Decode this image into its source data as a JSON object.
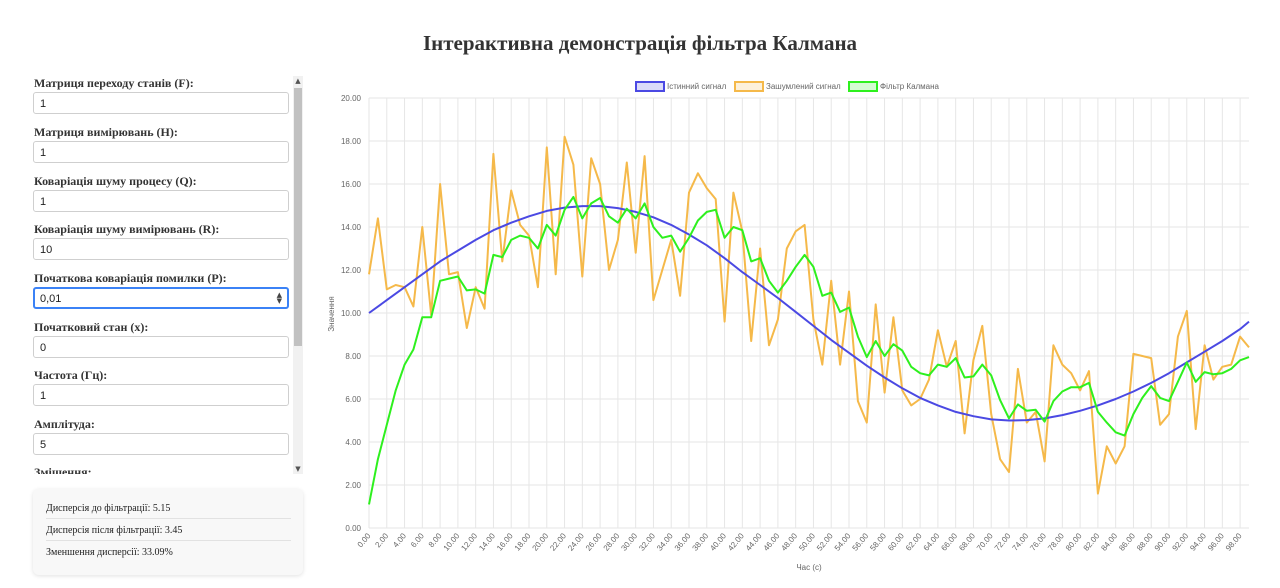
{
  "page": {
    "title": "Інтерактивна демонстрація фільтра Калмана"
  },
  "parameters": [
    {
      "label": "Матриця переходу станів (F):",
      "value": "1"
    },
    {
      "label": "Матриця вимірювань (H):",
      "value": "1"
    },
    {
      "label": "Коваріація шуму процесу (Q):",
      "value": "1"
    },
    {
      "label": "Коваріація шуму вимірювань (R):",
      "value": "10"
    },
    {
      "label": "Початкова коваріація помилки (P):",
      "value": "0,01"
    },
    {
      "label": "Початковий стан (x):",
      "value": "0"
    },
    {
      "label": "Частота (Гц):",
      "value": "1"
    },
    {
      "label": "Амплітуда:",
      "value": "5"
    },
    {
      "label": "Зміщення:",
      "value": ""
    }
  ],
  "stats": {
    "before": "Дисперсія до фільтрації: 5.15",
    "after": "Дисперсія після фільтрації: 3.45",
    "reduction": "Зменшення дисперсії: 33.09%"
  },
  "icons": {
    "spinner": "spinner-arrows-icon",
    "scroll_up": "scroll-up-arrow-icon",
    "scroll_down": "scroll-down-arrow-icon"
  },
  "colors": {
    "true_signal": "#4b49e3",
    "noisy_signal": "#f5b94a",
    "kalman": "#2ef01e",
    "focus": "#3b82f6"
  },
  "chart_data": {
    "type": "line",
    "xlabel": "Час (с)",
    "ylabel": "Значення",
    "ylim": [
      0,
      20
    ],
    "y_ticks": [
      "0.00",
      "2.00",
      "4.00",
      "6.00",
      "8.00",
      "10.00",
      "12.00",
      "14.00",
      "16.00",
      "18.00",
      "20.00"
    ],
    "x_ticks": [
      "0.00",
      "2.00",
      "4.00",
      "6.00",
      "8.00",
      "10.00",
      "12.00",
      "14.00",
      "16.00",
      "18.00",
      "20.00",
      "22.00",
      "24.00",
      "26.00",
      "28.00",
      "30.00",
      "32.00",
      "34.00",
      "36.00",
      "38.00",
      "40.00",
      "42.00",
      "44.00",
      "46.00",
      "48.00",
      "50.00",
      "52.00",
      "54.00",
      "56.00",
      "58.00",
      "60.00",
      "62.00",
      "64.00",
      "66.00",
      "68.00",
      "70.00",
      "72.00",
      "74.00",
      "76.00",
      "78.00",
      "80.00",
      "82.00",
      "84.00",
      "86.00",
      "88.00",
      "90.00",
      "92.00",
      "94.00",
      "96.00",
      "98.00"
    ],
    "grid": true,
    "legend_position": "top",
    "series": [
      {
        "name": "Істинний сигнал",
        "color": "#4b49e3",
        "x": [
          0,
          2,
          4,
          6,
          8,
          10,
          12,
          14,
          16,
          18,
          20,
          22,
          24,
          26,
          28,
          30,
          32,
          34,
          36,
          38,
          40,
          42,
          44,
          46,
          48,
          50,
          52,
          54,
          56,
          58,
          60,
          62,
          64,
          66,
          68,
          70,
          72,
          74,
          76,
          78,
          80,
          82,
          84,
          86,
          88,
          90,
          92,
          94,
          96,
          98,
          99
        ],
        "values": [
          10,
          10.6,
          11.2,
          11.8,
          12.4,
          12.9,
          13.4,
          13.85,
          14.2,
          14.5,
          14.75,
          14.9,
          14.97,
          14.97,
          14.88,
          14.7,
          14.45,
          14.1,
          13.65,
          13.15,
          12.55,
          11.9,
          11.3,
          10.7,
          10.05,
          9.4,
          8.75,
          8.15,
          7.55,
          7.0,
          6.5,
          6.05,
          5.7,
          5.4,
          5.2,
          5.05,
          5.0,
          5.02,
          5.1,
          5.25,
          5.45,
          5.7,
          6.0,
          6.35,
          6.75,
          7.2,
          7.7,
          8.2,
          8.7,
          9.25,
          9.6
        ]
      },
      {
        "name": "Зашумлений сигнал",
        "color": "#f5b94a",
        "x": [
          0,
          1,
          2,
          3,
          4,
          5,
          6,
          7,
          8,
          9,
          10,
          11,
          12,
          13,
          14,
          15,
          16,
          17,
          18,
          19,
          20,
          21,
          22,
          23,
          24,
          25,
          26,
          27,
          28,
          29,
          30,
          31,
          32,
          33,
          34,
          35,
          36,
          37,
          38,
          39,
          40,
          41,
          42,
          43,
          44,
          45,
          46,
          47,
          48,
          49,
          50,
          51,
          52,
          53,
          54,
          55,
          56,
          57,
          58,
          59,
          60,
          61,
          62,
          63,
          64,
          65,
          66,
          67,
          68,
          69,
          70,
          71,
          72,
          73,
          74,
          75,
          76,
          77,
          78,
          79,
          80,
          81,
          82,
          83,
          84,
          85,
          86,
          87,
          88,
          89,
          90,
          91,
          92,
          93,
          94,
          95,
          96,
          97,
          98,
          99
        ],
        "values": [
          11.8,
          14.4,
          11.1,
          11.3,
          11.2,
          10.3,
          14.0,
          9.9,
          16.0,
          11.8,
          11.9,
          9.3,
          11.2,
          10.2,
          17.4,
          12.4,
          15.7,
          14.1,
          13.6,
          11.2,
          17.7,
          11.8,
          18.2,
          16.9,
          11.7,
          17.2,
          16.0,
          12.0,
          13.4,
          17.0,
          12.8,
          17.3,
          10.6,
          12.0,
          13.4,
          10.8,
          15.6,
          16.5,
          15.8,
          15.3,
          9.6,
          15.6,
          13.8,
          8.7,
          13.0,
          8.5,
          9.7,
          13.0,
          13.8,
          14.1,
          9.7,
          7.6,
          11.5,
          7.6,
          11.0,
          5.9,
          4.9,
          10.4,
          6.3,
          9.8,
          6.4,
          5.7,
          6.0,
          6.9,
          9.2,
          7.5,
          8.7,
          4.4,
          7.8,
          9.4,
          5.3,
          3.2,
          2.6,
          7.4,
          4.9,
          5.4,
          3.1,
          8.5,
          7.6,
          7.2,
          6.4,
          7.3,
          1.6,
          3.8,
          3.0,
          3.8,
          8.1,
          8.0,
          7.9,
          4.8,
          5.3,
          8.9,
          10.1,
          4.6,
          8.5,
          6.9,
          7.5,
          7.6,
          8.9,
          8.4
        ]
      },
      {
        "name": "Фільтр Калмана",
        "color": "#2ef01e",
        "x": [
          0,
          1,
          2,
          3,
          4,
          5,
          6,
          7,
          8,
          9,
          10,
          11,
          12,
          13,
          14,
          15,
          16,
          17,
          18,
          19,
          20,
          21,
          22,
          23,
          24,
          25,
          26,
          27,
          28,
          29,
          30,
          31,
          32,
          33,
          34,
          35,
          36,
          37,
          38,
          39,
          40,
          41,
          42,
          43,
          44,
          45,
          46,
          47,
          48,
          49,
          50,
          51,
          52,
          53,
          54,
          55,
          56,
          57,
          58,
          59,
          60,
          61,
          62,
          63,
          64,
          65,
          66,
          67,
          68,
          69,
          70,
          71,
          72,
          73,
          74,
          75,
          76,
          77,
          78,
          79,
          80,
          81,
          82,
          83,
          84,
          85,
          86,
          87,
          88,
          89,
          90,
          91,
          92,
          93,
          94,
          95,
          96,
          97,
          98,
          99
        ],
        "values": [
          1.1,
          3.2,
          4.8,
          6.4,
          7.6,
          8.3,
          9.8,
          9.8,
          11.5,
          11.6,
          11.7,
          11.05,
          11.1,
          10.9,
          12.7,
          12.6,
          13.4,
          13.6,
          13.5,
          13.0,
          14.1,
          13.6,
          14.8,
          15.4,
          14.4,
          15.1,
          15.35,
          14.5,
          14.2,
          14.85,
          14.4,
          15.1,
          14.0,
          13.5,
          13.6,
          12.85,
          13.5,
          14.3,
          14.7,
          14.8,
          13.5,
          14.0,
          13.85,
          12.4,
          12.55,
          11.5,
          10.95,
          11.5,
          12.15,
          12.7,
          12.15,
          10.8,
          10.95,
          10.05,
          10.25,
          8.9,
          7.95,
          8.7,
          8.0,
          8.55,
          8.25,
          7.5,
          7.2,
          7.1,
          7.6,
          7.5,
          7.9,
          7.0,
          7.05,
          7.6,
          7.1,
          5.95,
          5.1,
          5.75,
          5.45,
          5.5,
          4.95,
          5.9,
          6.35,
          6.55,
          6.55,
          6.75,
          5.4,
          4.9,
          4.45,
          4.3,
          5.3,
          6.05,
          6.6,
          6.05,
          5.9,
          6.8,
          7.7,
          6.8,
          7.25,
          7.15,
          7.2,
          7.4,
          7.8,
          7.95
        ]
      }
    ]
  }
}
